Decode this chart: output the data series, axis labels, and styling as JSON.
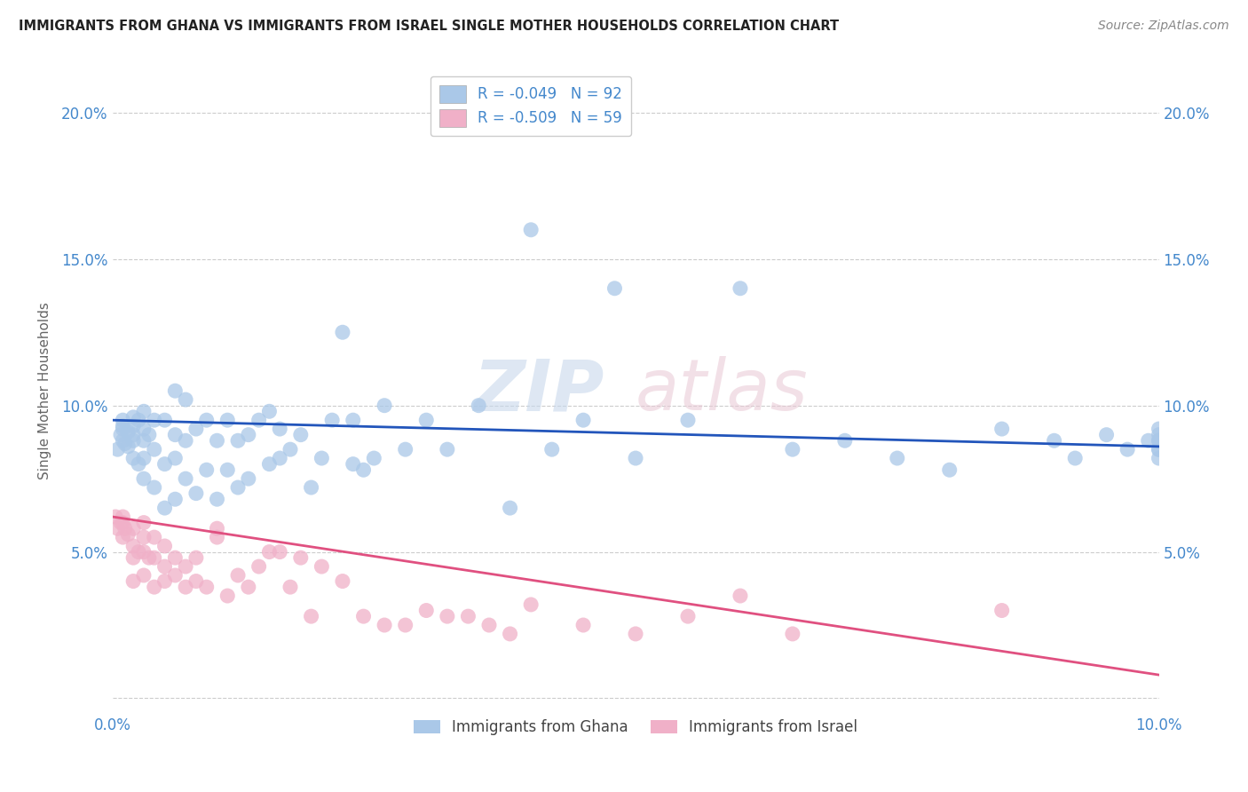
{
  "title": "IMMIGRANTS FROM GHANA VS IMMIGRANTS FROM ISRAEL SINGLE MOTHER HOUSEHOLDS CORRELATION CHART",
  "source": "Source: ZipAtlas.com",
  "ylabel": "Single Mother Households",
  "xlim": [
    0.0,
    0.1
  ],
  "ylim": [
    -0.005,
    0.215
  ],
  "ghana_color": "#aac8e8",
  "israel_color": "#f0b0c8",
  "ghana_line_color": "#2255bb",
  "israel_line_color": "#e05080",
  "ghana_R": -0.049,
  "ghana_N": 92,
  "israel_R": -0.509,
  "israel_N": 59,
  "ghana_scatter_x": [
    0.0005,
    0.0008,
    0.001,
    0.001,
    0.001,
    0.001,
    0.0012,
    0.0015,
    0.0015,
    0.002,
    0.002,
    0.002,
    0.002,
    0.002,
    0.0025,
    0.0025,
    0.003,
    0.003,
    0.003,
    0.003,
    0.003,
    0.0035,
    0.004,
    0.004,
    0.004,
    0.005,
    0.005,
    0.005,
    0.006,
    0.006,
    0.006,
    0.006,
    0.007,
    0.007,
    0.007,
    0.008,
    0.008,
    0.009,
    0.009,
    0.01,
    0.01,
    0.011,
    0.011,
    0.012,
    0.012,
    0.013,
    0.013,
    0.014,
    0.015,
    0.015,
    0.016,
    0.016,
    0.017,
    0.018,
    0.019,
    0.02,
    0.021,
    0.022,
    0.023,
    0.023,
    0.024,
    0.025,
    0.026,
    0.028,
    0.03,
    0.032,
    0.035,
    0.038,
    0.04,
    0.042,
    0.045,
    0.048,
    0.05,
    0.055,
    0.06,
    0.065,
    0.07,
    0.075,
    0.08,
    0.085,
    0.09,
    0.092,
    0.095,
    0.097,
    0.099,
    0.1,
    0.1,
    0.1,
    0.1,
    0.1,
    0.1,
    0.1
  ],
  "ghana_scatter_y": [
    0.085,
    0.09,
    0.088,
    0.092,
    0.095,
    0.093,
    0.087,
    0.086,
    0.091,
    0.082,
    0.088,
    0.09,
    0.093,
    0.096,
    0.08,
    0.095,
    0.075,
    0.082,
    0.088,
    0.092,
    0.098,
    0.09,
    0.072,
    0.085,
    0.095,
    0.065,
    0.08,
    0.095,
    0.068,
    0.082,
    0.09,
    0.105,
    0.075,
    0.088,
    0.102,
    0.07,
    0.092,
    0.078,
    0.095,
    0.068,
    0.088,
    0.078,
    0.095,
    0.072,
    0.088,
    0.075,
    0.09,
    0.095,
    0.098,
    0.08,
    0.082,
    0.092,
    0.085,
    0.09,
    0.072,
    0.082,
    0.095,
    0.125,
    0.08,
    0.095,
    0.078,
    0.082,
    0.1,
    0.085,
    0.095,
    0.085,
    0.1,
    0.065,
    0.16,
    0.085,
    0.095,
    0.14,
    0.082,
    0.095,
    0.14,
    0.085,
    0.088,
    0.082,
    0.078,
    0.092,
    0.088,
    0.082,
    0.09,
    0.085,
    0.088,
    0.09,
    0.082,
    0.085,
    0.088,
    0.092,
    0.085,
    0.088
  ],
  "israel_scatter_x": [
    0.0003,
    0.0005,
    0.0008,
    0.001,
    0.001,
    0.001,
    0.0012,
    0.0015,
    0.002,
    0.002,
    0.002,
    0.002,
    0.0025,
    0.003,
    0.003,
    0.003,
    0.003,
    0.0035,
    0.004,
    0.004,
    0.004,
    0.005,
    0.005,
    0.005,
    0.006,
    0.006,
    0.007,
    0.007,
    0.008,
    0.008,
    0.009,
    0.01,
    0.01,
    0.011,
    0.012,
    0.013,
    0.014,
    0.015,
    0.016,
    0.017,
    0.018,
    0.019,
    0.02,
    0.022,
    0.024,
    0.026,
    0.028,
    0.03,
    0.032,
    0.034,
    0.036,
    0.038,
    0.04,
    0.045,
    0.05,
    0.055,
    0.06,
    0.065,
    0.085
  ],
  "israel_scatter_y": [
    0.062,
    0.058,
    0.06,
    0.055,
    0.06,
    0.062,
    0.058,
    0.056,
    0.04,
    0.048,
    0.052,
    0.058,
    0.05,
    0.042,
    0.05,
    0.055,
    0.06,
    0.048,
    0.038,
    0.048,
    0.055,
    0.04,
    0.045,
    0.052,
    0.042,
    0.048,
    0.038,
    0.045,
    0.04,
    0.048,
    0.038,
    0.055,
    0.058,
    0.035,
    0.042,
    0.038,
    0.045,
    0.05,
    0.05,
    0.038,
    0.048,
    0.028,
    0.045,
    0.04,
    0.028,
    0.025,
    0.025,
    0.03,
    0.028,
    0.028,
    0.025,
    0.022,
    0.032,
    0.025,
    0.022,
    0.028,
    0.035,
    0.022,
    0.03
  ]
}
